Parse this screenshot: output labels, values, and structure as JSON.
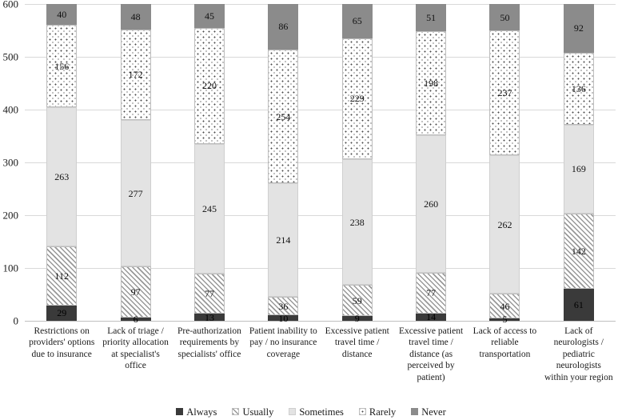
{
  "chart_data": {
    "type": "bar",
    "stacked": true,
    "title": "",
    "xlabel": "",
    "ylabel": "",
    "ylim": [
      0,
      600
    ],
    "yticks": [
      0,
      100,
      200,
      300,
      400,
      500,
      600
    ],
    "grid": true,
    "data_labels": true,
    "legend_position": "bottom",
    "categories": [
      "Restrictions on providers' options due to insurance",
      "Lack of triage / priority allocation at specialist's office",
      "Pre-authorization requirements by specialists' office",
      "Patient inability to pay / no insurance coverage",
      "Excessive patient travel time / distance",
      "Excessive patient travel time / distance (as perceived by patient)",
      "Lack of access to reliable transportation",
      "Lack of neurologists / pediatric neurologists within your region"
    ],
    "series": [
      {
        "name": "Always",
        "pattern": "solid-dark",
        "fill": "#3a3a3a",
        "values": [
          29,
          6,
          13,
          10,
          9,
          14,
          5,
          61
        ]
      },
      {
        "name": "Usually",
        "pattern": "diagonal-hatch",
        "fill": "#989898",
        "values": [
          112,
          97,
          77,
          36,
          59,
          77,
          46,
          142
        ]
      },
      {
        "name": "Sometimes",
        "pattern": "solid-light",
        "fill": "#e3e3e3",
        "values": [
          263,
          277,
          245,
          214,
          238,
          260,
          262,
          169
        ]
      },
      {
        "name": "Rarely",
        "pattern": "dots",
        "fill": "#4a4a4a",
        "values": [
          156,
          172,
          220,
          254,
          229,
          198,
          237,
          136
        ]
      },
      {
        "name": "Never",
        "pattern": "solid-medium",
        "fill": "#8b8b8b",
        "values": [
          40,
          48,
          45,
          86,
          65,
          51,
          50,
          92
        ]
      }
    ],
    "colors": {
      "gridline": "#d9d9d9",
      "axis_line": "#bfbfbf",
      "text": "#1a1a1a",
      "background": "#ffffff"
    }
  }
}
